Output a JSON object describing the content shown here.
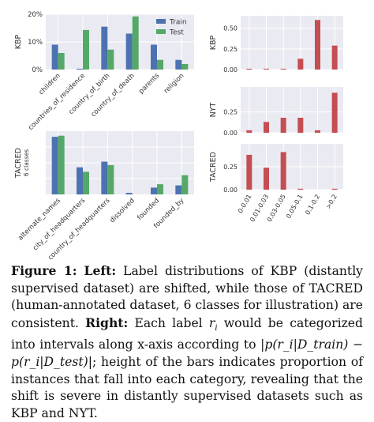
{
  "colors": {
    "train": "#4c72b0",
    "test": "#55a868",
    "red": "#c44e52",
    "panel": "#eaeaf2",
    "grid": "#ffffff"
  },
  "chart_data": [
    {
      "type": "bar",
      "panel": "kbp-left",
      "ylabel": "KBP",
      "yticks": [
        "0%",
        "10%",
        "20%"
      ],
      "ylim": [
        0,
        20
      ],
      "categories": [
        "children",
        "countries_of_residence",
        "country_of_birth",
        "country_of_death",
        "parents",
        "religion"
      ],
      "series": [
        {
          "name": "Train",
          "values": [
            9,
            0.3,
            15.5,
            13,
            9,
            3.5
          ]
        },
        {
          "name": "Test",
          "values": [
            6,
            14.3,
            7.2,
            19.2,
            3.5,
            2
          ]
        }
      ],
      "legend": "top-right",
      "grid": true
    },
    {
      "type": "bar",
      "panel": "tacred-left",
      "ylabel": "TACRED",
      "ysublabel": "6 classes",
      "yticks": [],
      "ylim": [
        0,
        2.8
      ],
      "categories": [
        "alternate_names",
        "city_of_headquarters",
        "country_of_headquarters",
        "dissolved",
        "founded",
        "founded_by"
      ],
      "series": [
        {
          "name": "Train",
          "values": [
            2.55,
            1.2,
            1.45,
            0.07,
            0.3,
            0.4
          ]
        },
        {
          "name": "Test",
          "values": [
            2.6,
            1.0,
            1.3,
            0.0,
            0.45,
            0.85
          ]
        }
      ],
      "grid": true
    },
    {
      "type": "bar",
      "panel": "kbp-right",
      "ylabel": "KBP",
      "yticks": [
        "0.00",
        "0.25",
        "0.50"
      ],
      "ylim": [
        0,
        0.65
      ],
      "categories": [
        "0-0.01",
        "0.01-0.03",
        "0.03-0.05",
        "0.05-0.1",
        "0.1-0.2",
        ">0.2"
      ],
      "series": [
        {
          "values": [
            0.01,
            0.01,
            0.01,
            0.13,
            0.6,
            0.29
          ]
        }
      ],
      "grid": true
    },
    {
      "type": "bar",
      "panel": "nyt-right",
      "ylabel": "NYT",
      "yticks": [
        "0.00",
        "0.25"
      ],
      "ylim": [
        0,
        0.55
      ],
      "categories": [
        "0-0.01",
        "0.01-0.03",
        "0.03-0.05",
        "0.05-0.1",
        "0.1-0.2",
        ">0.2"
      ],
      "series": [
        {
          "values": [
            0.03,
            0.13,
            0.18,
            0.18,
            0.03,
            0.48
          ]
        }
      ],
      "grid": true
    },
    {
      "type": "bar",
      "panel": "tacred-right",
      "ylabel": "TACRED",
      "yticks": [
        "0.00",
        "0.25"
      ],
      "ylim": [
        0,
        0.5
      ],
      "categories": [
        "0-0.01",
        "0.01-0.03",
        "0.03-0.05",
        "0.05-0.1",
        "0.1-0.2",
        ">0.2"
      ],
      "series": [
        {
          "values": [
            0.38,
            0.24,
            0.41,
            0.01,
            0.0,
            0.01
          ]
        }
      ],
      "grid": true
    }
  ],
  "caption": {
    "figure_label": "Figure 1:",
    "left_label": "Left:",
    "left_text": " Label distributions of KBP (distantly supervised dataset) are shifted, while those of TACRED (human-annotated dataset, 6 classes for illustration) are consistent. ",
    "right_label": "Right:",
    "right_text_1": " Each label ",
    "ri": "r",
    "ri_sub": "i",
    "right_text_2": " would be categorized into intervals along x-axis according to ",
    "formula": "|p(r_i|D_train) − p(r_i|D_test)|",
    "right_text_3": "; height of the bars indicates proportion of instances that fall into each category, revealing that the shift is severe in distantly supervised datasets such as KBP and NYT."
  }
}
